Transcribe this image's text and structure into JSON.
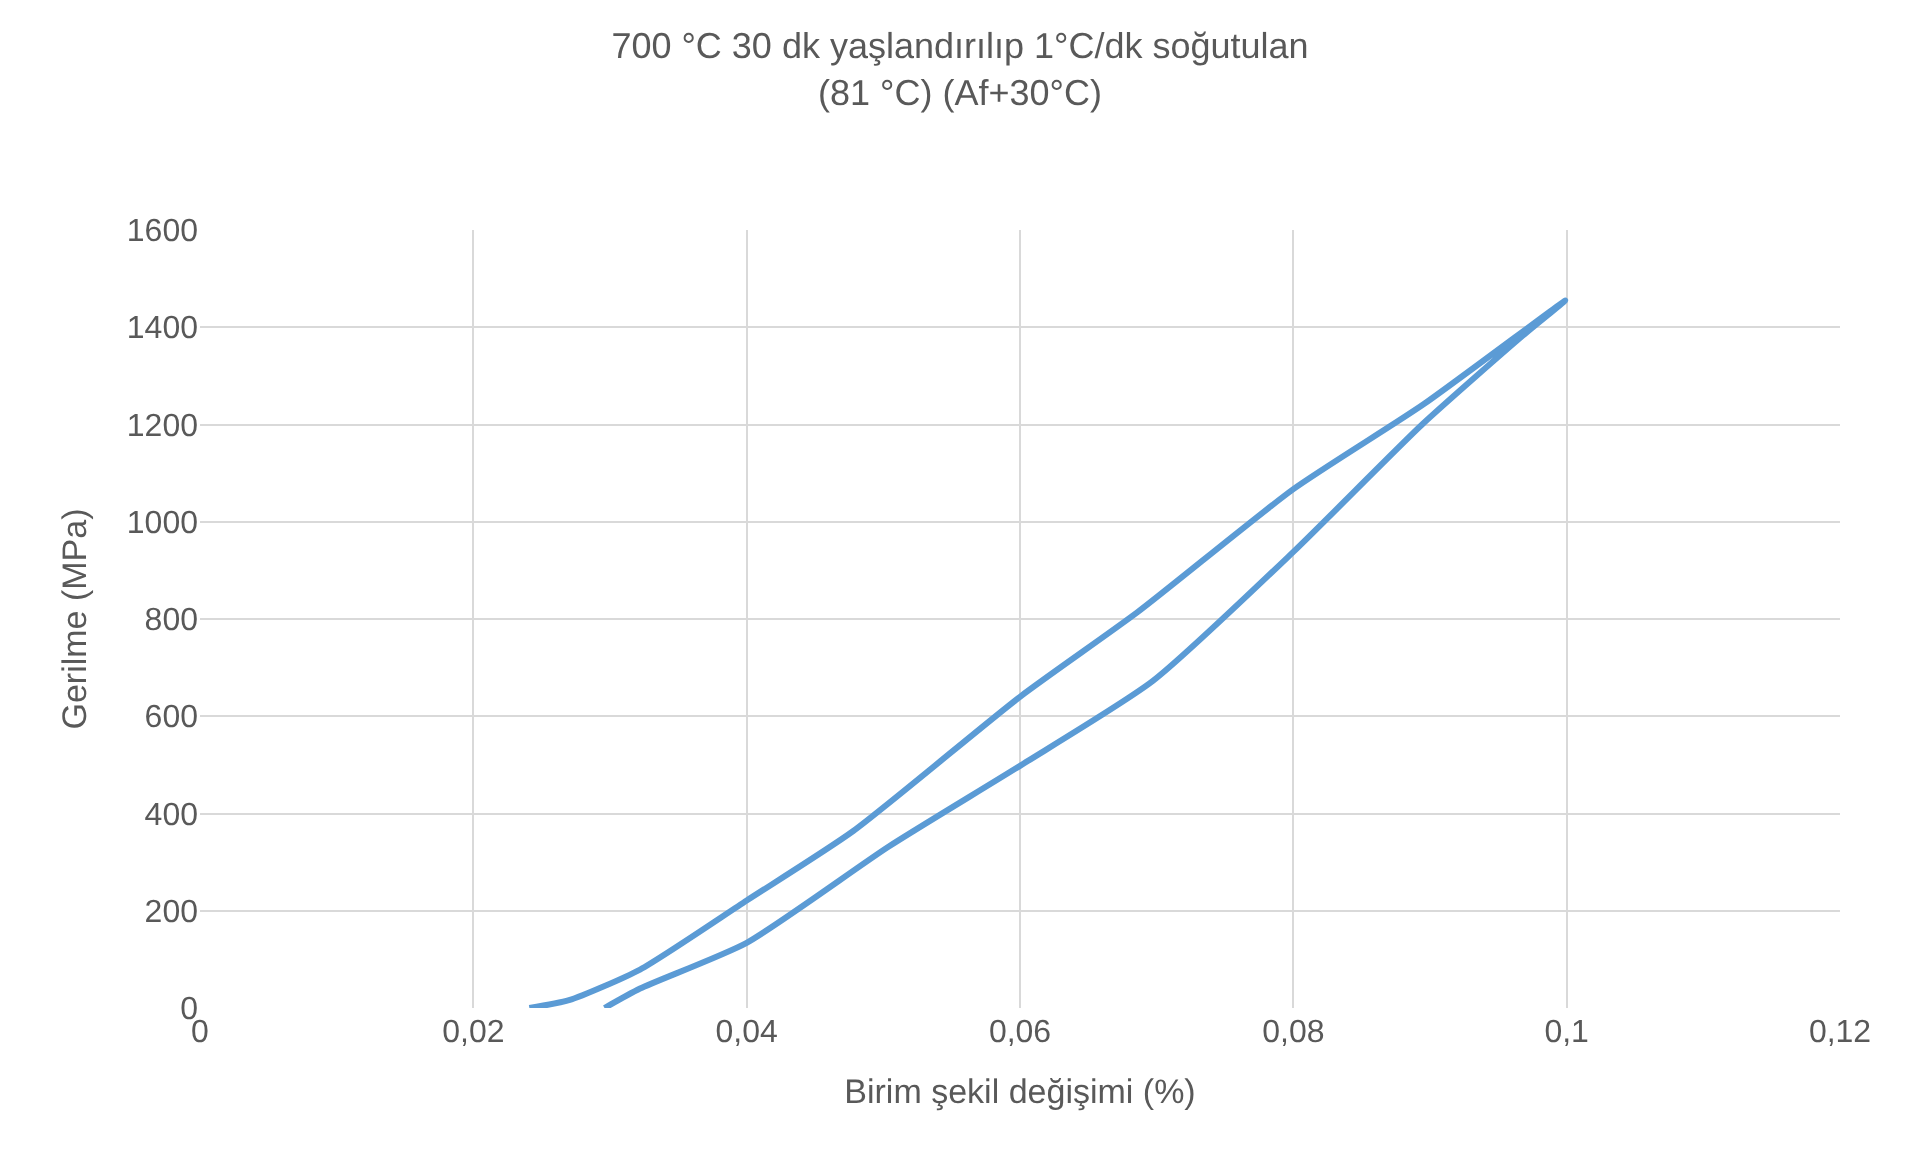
{
  "chart_data": {
    "type": "line",
    "title": "700 °C 30 dk yaşlandırılıp 1°C/dk soğutulan\n(81 °C) (Af+30°C)",
    "xlabel": "Birim şekil değişimi (%)",
    "ylabel": "Gerilme (MPa)",
    "series": [
      {
        "color": "#5b9bd5",
        "x": [
          0.0241,
          0.027,
          0.0322,
          0.04,
          0.0478,
          0.06,
          0.0686,
          0.08,
          0.0895,
          0.0999,
          0.0968,
          0.0895,
          0.08,
          0.0697,
          0.06,
          0.0504,
          0.04,
          0.0322,
          0.0296
        ],
        "values": [
          0,
          16,
          79,
          221,
          364,
          640,
          814,
          1067,
          1241,
          1455,
          1383,
          1202,
          938,
          672,
          498,
          332,
          134,
          40,
          0
        ]
      }
    ],
    "xlim": [
      0,
      0.12
    ],
    "xticks": [
      {
        "value": 0,
        "label": "0"
      },
      {
        "value": 0.02,
        "label": "0,02"
      },
      {
        "value": 0.04,
        "label": "0,04"
      },
      {
        "value": 0.06,
        "label": "0,06"
      },
      {
        "value": 0.08,
        "label": "0,08"
      },
      {
        "value": 0.1,
        "label": "0,1"
      },
      {
        "value": 0.12,
        "label": "0,12"
      }
    ],
    "ylim": [
      0,
      1600
    ],
    "yticks": [
      0,
      200,
      400,
      600,
      800,
      1000,
      1200,
      1400,
      1600
    ],
    "grid": true,
    "legend": false,
    "marker": "none",
    "line_style": "solid"
  }
}
